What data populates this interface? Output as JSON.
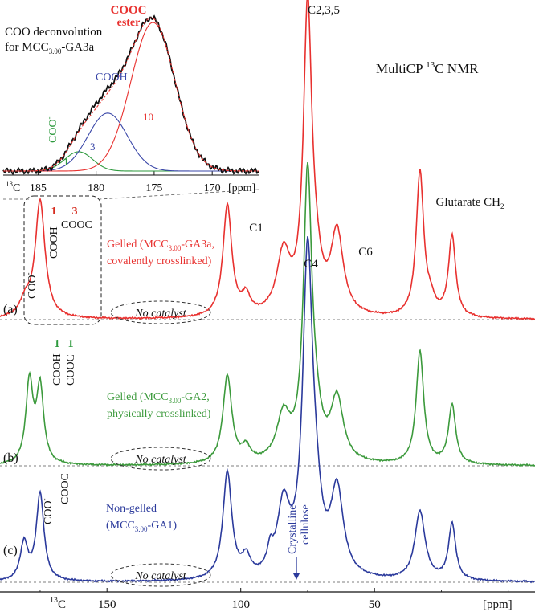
{
  "chart_data": [
    {
      "type": "line",
      "title": "MultiCP 13C NMR",
      "xlabel": "[ppm]",
      "nucleus_label": "13C",
      "xlim": [
        190,
        -10
      ],
      "x_reversed": true,
      "x_ticks": [
        150,
        100,
        50
      ],
      "series": [
        {
          "id": "a",
          "panel_label": "(a)",
          "name": "Gelled (MCC3.00-GA3a, covalently crosslinked)",
          "name_lines": [
            "Gelled (MCC",
            "3.00",
            "-GA3a,",
            "covalently crosslinked)"
          ],
          "color": "#e8312f",
          "peaks": [
            {
              "ppm": 175,
              "height": 0.39,
              "width": 2.2
            },
            {
              "ppm": 180.5,
              "height": 0.05,
              "width": 2.5
            },
            {
              "ppm": 105,
              "height": 0.37,
              "width": 2.0
            },
            {
              "ppm": 98,
              "height": 0.06,
              "width": 1.8
            },
            {
              "ppm": 84,
              "height": 0.2,
              "width": 3.0
            },
            {
              "ppm": 75,
              "height": 1.0,
              "width": 1.9
            },
            {
              "ppm": 72,
              "height": 0.1,
              "width": 2.5
            },
            {
              "ppm": 64,
              "height": 0.27,
              "width": 2.8
            },
            {
              "ppm": 33,
              "height": 0.48,
              "width": 1.7
            },
            {
              "ppm": 21,
              "height": 0.27,
              "width": 1.6
            },
            {
              "ppm": 29,
              "height": 0.04,
              "width": 2.0
            }
          ]
        },
        {
          "id": "b",
          "panel_label": "(b)",
          "name": "Gelled (MCC3.00-GA2, physically crosslinked)",
          "name_lines": [
            "Gelled (MCC",
            "3.00",
            "-GA2,",
            "physically crosslinked)"
          ],
          "color": "#3c9a3c",
          "peaks": [
            {
              "ppm": 179,
              "height": 0.29,
              "width": 1.6
            },
            {
              "ppm": 175,
              "height": 0.27,
              "width": 1.6
            },
            {
              "ppm": 105,
              "height": 0.31,
              "width": 2.0
            },
            {
              "ppm": 98,
              "height": 0.05,
              "width": 1.8
            },
            {
              "ppm": 84,
              "height": 0.16,
              "width": 3.0
            },
            {
              "ppm": 75,
              "height": 1.0,
              "width": 1.9
            },
            {
              "ppm": 72,
              "height": 0.1,
              "width": 2.5
            },
            {
              "ppm": 64,
              "height": 0.22,
              "width": 2.8
            },
            {
              "ppm": 33,
              "height": 0.4,
              "width": 1.7
            },
            {
              "ppm": 21,
              "height": 0.21,
              "width": 1.6
            }
          ]
        },
        {
          "id": "c",
          "panel_label": "(c)",
          "name": "Non-gelled (MCC3.00-GA1)",
          "name_lines": [
            "Non-gelled",
            "(MCC",
            "3.00",
            "-GA1)"
          ],
          "color": "#2b3a9c",
          "peaks": [
            {
              "ppm": 181,
              "height": 0.12,
              "width": 1.7
            },
            {
              "ppm": 175,
              "height": 0.28,
              "width": 1.7
            },
            {
              "ppm": 105,
              "height": 0.34,
              "width": 2.0
            },
            {
              "ppm": 98,
              "height": 0.06,
              "width": 1.8
            },
            {
              "ppm": 89,
              "height": 0.06,
              "width": 1.2
            },
            {
              "ppm": 84,
              "height": 0.22,
              "width": 2.8
            },
            {
              "ppm": 75,
              "height": 1.0,
              "width": 2.2
            },
            {
              "ppm": 72,
              "height": 0.15,
              "width": 2.5
            },
            {
              "ppm": 64,
              "height": 0.27,
              "width": 2.8
            },
            {
              "ppm": 33,
              "height": 0.22,
              "width": 2.3
            },
            {
              "ppm": 21,
              "height": 0.18,
              "width": 1.6
            }
          ]
        }
      ],
      "peak_labels": {
        "c235": "C2,3,5",
        "c1": "C1",
        "c4": "C4",
        "c6": "C6",
        "glutarate": "Glutarate CH",
        "glutarate_sub": "2",
        "cooc": "COOC",
        "cooh": "COOH",
        "coo_minus": "COO",
        "minus_sup": "-",
        "crystalline": [
          "Crystalline",
          "cellulose"
        ]
      },
      "deconv_numbers": {
        "a_cooh": "1",
        "a_cooc": "3",
        "b_cooh": "1",
        "b_cooc": "1"
      },
      "no_catalyst_label": "No catalyst"
    },
    {
      "type": "line",
      "title": "COO deconvolution for MCC3.00-GA3a",
      "title_lines": [
        "COO deconvolution",
        "for MCC",
        "3.00",
        "-GA3a"
      ],
      "xlabel": "[ppm]",
      "nucleus_label": "13C",
      "xlim": [
        188,
        166
      ],
      "x_reversed": true,
      "x_ticks": [
        185,
        180,
        175,
        170
      ],
      "components": [
        {
          "name": "COO-",
          "label": "1",
          "center": 181.5,
          "height": 0.13,
          "width": 1.2,
          "color": "#2e9a3e"
        },
        {
          "name": "COOH",
          "label": "3",
          "center": 179.0,
          "height": 0.39,
          "width": 1.7,
          "color": "#3a47a8"
        },
        {
          "name": "COOC ester",
          "label": "10",
          "center": 175.1,
          "height": 1.0,
          "width": 1.9,
          "color": "#e8312f"
        }
      ],
      "component_names": {
        "coo": "COO",
        "cooh": "COOH",
        "cooc": "COOC",
        "ester": "ester"
      }
    }
  ]
}
